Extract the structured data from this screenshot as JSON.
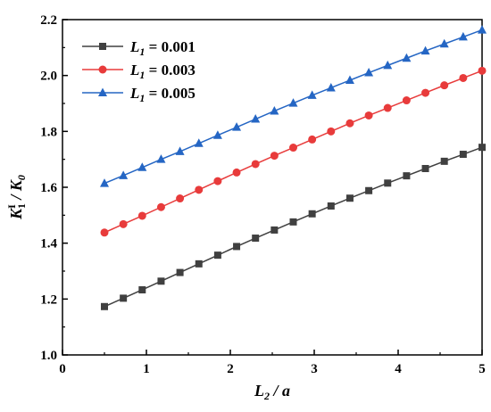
{
  "chart_data": {
    "type": "line",
    "xlabel": {
      "main": "L",
      "sub": "2",
      "rest": " / a"
    },
    "ylabel": {
      "k": "K",
      "sup": "I",
      "sub1": "1",
      "mid": " / ",
      "k0": "K",
      "sub0": "0"
    },
    "xlim": [
      0,
      5
    ],
    "ylim": [
      1.0,
      2.2
    ],
    "xticks": [
      0,
      1,
      2,
      3,
      4,
      5
    ],
    "xtick_labels": [
      "0",
      "1",
      "2",
      "3",
      "4",
      "5"
    ],
    "yticks": [
      1.0,
      1.2,
      1.4,
      1.6,
      1.8,
      2.0,
      2.2
    ],
    "ytick_labels": [
      "1.0",
      "1.2",
      "1.4",
      "1.6",
      "1.8",
      "2.0",
      "2.2"
    ],
    "grid": false,
    "legend_position": "top-left",
    "x": [
      0.5,
      0.725,
      0.95,
      1.175,
      1.4,
      1.625,
      1.85,
      2.075,
      2.3,
      2.525,
      2.75,
      2.975,
      3.2,
      3.425,
      3.65,
      3.875,
      4.1,
      4.325,
      4.55,
      4.775,
      5.0
    ],
    "series": [
      {
        "name_main": "L",
        "name_sub": "1",
        "name_rest": " = 0.001",
        "color": "#404040",
        "marker": "square",
        "values": [
          1.173,
          1.203,
          1.233,
          1.264,
          1.295,
          1.326,
          1.357,
          1.388,
          1.418,
          1.447,
          1.476,
          1.505,
          1.533,
          1.561,
          1.588,
          1.615,
          1.641,
          1.667,
          1.693,
          1.718,
          1.743
        ]
      },
      {
        "name_main": "L",
        "name_sub": "1",
        "name_rest": " = 0.003",
        "color": "#e83b3b",
        "marker": "circle",
        "values": [
          1.438,
          1.468,
          1.498,
          1.529,
          1.56,
          1.591,
          1.622,
          1.653,
          1.683,
          1.713,
          1.742,
          1.771,
          1.8,
          1.829,
          1.857,
          1.884,
          1.911,
          1.938,
          1.965,
          1.991,
          2.017
        ]
      },
      {
        "name_main": "L",
        "name_sub": "1",
        "name_rest": " = 0.005",
        "color": "#2566c4",
        "marker": "triangle",
        "values": [
          1.614,
          1.642,
          1.671,
          1.7,
          1.728,
          1.757,
          1.786,
          1.815,
          1.844,
          1.873,
          1.901,
          1.929,
          1.956,
          1.983,
          2.01,
          2.036,
          2.062,
          2.088,
          2.113,
          2.138,
          2.163
        ]
      }
    ]
  }
}
